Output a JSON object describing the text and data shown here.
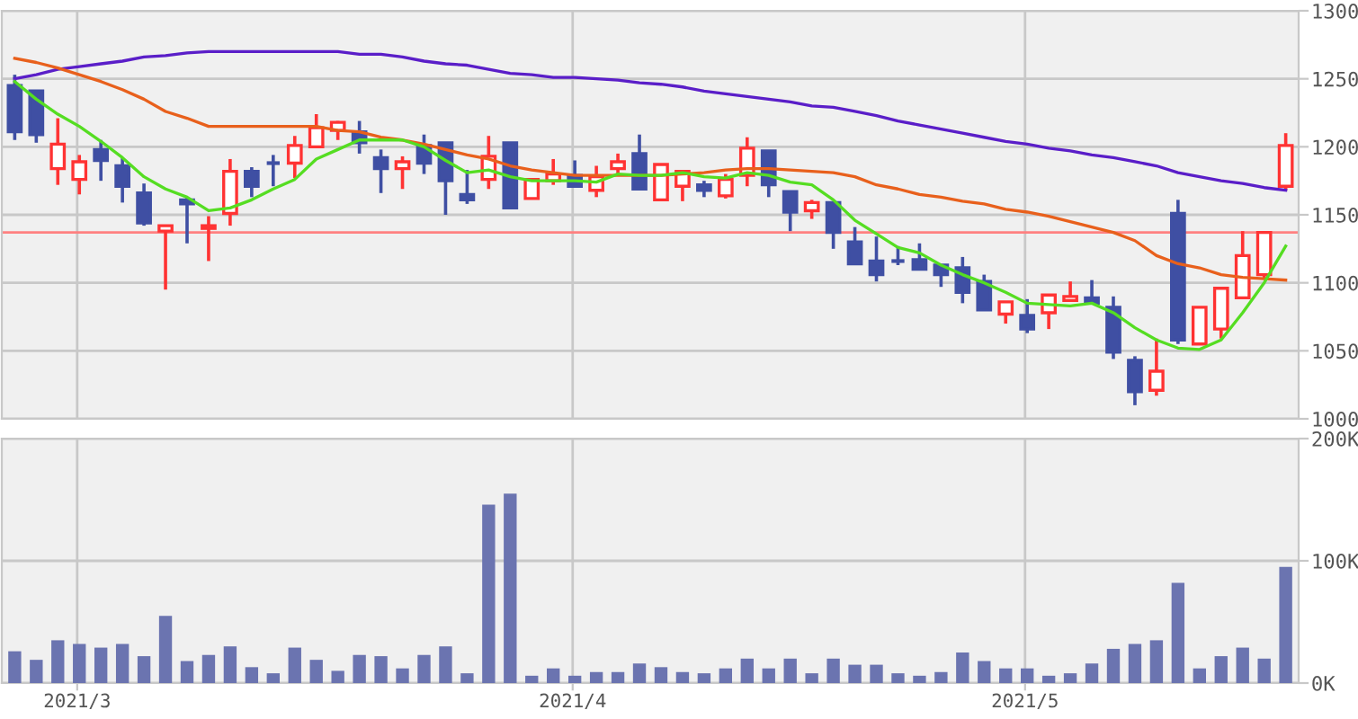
{
  "chart_data": [
    {
      "type": "candlestick",
      "categories": [
        null,
        null,
        null,
        "2021/3",
        null,
        null,
        null,
        null,
        null,
        null,
        null,
        null,
        null,
        null,
        null,
        null,
        null,
        null,
        null,
        null,
        null,
        null,
        null,
        null,
        null,
        null,
        "2021/4",
        null,
        null,
        null,
        null,
        null,
        null,
        null,
        null,
        null,
        null,
        null,
        null,
        null,
        null,
        null,
        null,
        null,
        null,
        null,
        null,
        "2021/5",
        null,
        null,
        null,
        null,
        null,
        null,
        null,
        null,
        null,
        null,
        null,
        null
      ],
      "ohlc": [
        [
          1245,
          1253,
          1205,
          1211
        ],
        [
          1241,
          1241,
          1203,
          1209
        ],
        [
          1184,
          1221,
          1172,
          1202
        ],
        [
          1176,
          1194,
          1165,
          1189
        ],
        [
          1198,
          1205,
          1175,
          1190
        ],
        [
          1186,
          1192,
          1159,
          1171
        ],
        [
          1166,
          1173,
          1142,
          1144
        ],
        [
          1138,
          1142,
          1095,
          1142
        ],
        [
          1161,
          1163,
          1129,
          1158
        ],
        [
          1140,
          1149,
          1116,
          1142
        ],
        [
          1151,
          1191,
          1142,
          1182
        ],
        [
          1182,
          1185,
          1163,
          1171
        ],
        [
          1188,
          1194,
          1171,
          1188
        ],
        [
          1188,
          1208,
          1177,
          1201
        ],
        [
          1200,
          1224,
          1200,
          1214
        ],
        [
          1212,
          1219,
          1205,
          1218
        ],
        [
          1211,
          1219,
          1195,
          1203
        ],
        [
          1192,
          1198,
          1166,
          1184
        ],
        [
          1184,
          1193,
          1169,
          1189
        ],
        [
          1201,
          1209,
          1180,
          1188
        ],
        [
          1203,
          1203,
          1150,
          1175
        ],
        [
          1165,
          1183,
          1158,
          1161
        ],
        [
          1176,
          1208,
          1169,
          1193
        ],
        [
          1203,
          1203,
          1155,
          1155
        ],
        [
          1162,
          1176,
          1162,
          1176
        ],
        [
          1175,
          1191,
          1172,
          1180
        ],
        [
          1179,
          1190,
          1171,
          1171
        ],
        [
          1168,
          1186,
          1163,
          1178
        ],
        [
          1184,
          1195,
          1180,
          1189
        ],
        [
          1195,
          1209,
          1169,
          1169
        ],
        [
          1161,
          1187,
          1161,
          1187
        ],
        [
          1171,
          1182,
          1160,
          1182
        ],
        [
          1172,
          1175,
          1163,
          1168
        ],
        [
          1164,
          1180,
          1162,
          1176
        ],
        [
          1179,
          1207,
          1171,
          1199
        ],
        [
          1197,
          1197,
          1163,
          1172
        ],
        [
          1167,
          1167,
          1138,
          1152
        ],
        [
          1153,
          1161,
          1147,
          1159
        ],
        [
          1159,
          1159,
          1125,
          1137
        ],
        [
          1130,
          1141,
          1114,
          1114
        ],
        [
          1116,
          1134,
          1101,
          1106
        ],
        [
          1116,
          1127,
          1113,
          1116
        ],
        [
          1117,
          1129,
          1110,
          1110
        ],
        [
          1113,
          1113,
          1097,
          1106
        ],
        [
          1111,
          1119,
          1085,
          1093
        ],
        [
          1101,
          1106,
          1080,
          1080
        ],
        [
          1077,
          1086,
          1070,
          1086
        ],
        [
          1076,
          1088,
          1063,
          1066
        ],
        [
          1078,
          1091,
          1066,
          1091
        ],
        [
          1087,
          1101,
          1086,
          1090
        ],
        [
          1089,
          1102,
          1085,
          1085
        ],
        [
          1082,
          1090,
          1044,
          1049
        ],
        [
          1043,
          1046,
          1010,
          1020
        ],
        [
          1021,
          1059,
          1017,
          1035
        ],
        [
          1151,
          1161,
          1055,
          1058
        ],
        [
          1055,
          1082,
          1055,
          1082
        ],
        [
          1066,
          1097,
          1059,
          1096
        ],
        [
          1089,
          1138,
          1089,
          1120
        ],
        [
          1106,
          1137,
          1103,
          1137
        ],
        [
          1171,
          1210,
          1168,
          1201
        ]
      ],
      "colors": [
        "#3f4fa3",
        "#3f4fa3",
        "#ff3333",
        "#ff3333",
        "#3f4fa3",
        "#3f4fa3",
        "#3f4fa3",
        "#ff3333",
        "#3f4fa3",
        "#ff3333",
        "#ff3333",
        "#3f4fa3",
        "#3f4fa3",
        "#ff3333",
        "#ff3333",
        "#ff3333",
        "#3f4fa3",
        "#3f4fa3",
        "#ff3333",
        "#3f4fa3",
        "#3f4fa3",
        "#3f4fa3",
        "#ff3333",
        "#3f4fa3",
        "#ff3333",
        "#ff3333",
        "#3f4fa3",
        "#ff3333",
        "#ff3333",
        "#3f4fa3",
        "#ff3333",
        "#ff3333",
        "#3f4fa3",
        "#ff3333",
        "#ff3333",
        "#3f4fa3",
        "#3f4fa3",
        "#ff3333",
        "#3f4fa3",
        "#3f4fa3",
        "#3f4fa3",
        "#3f4fa3",
        "#3f4fa3",
        "#3f4fa3",
        "#3f4fa3",
        "#3f4fa3",
        "#ff3333",
        "#3f4fa3",
        "#ff3333",
        "#ff3333",
        "#3f4fa3",
        "#3f4fa3",
        "#3f4fa3",
        "#ff3333",
        "#3f4fa3",
        "#ff3333",
        "#ff3333",
        "#ff3333",
        "#ff3333",
        "#ff3333"
      ],
      "series": [
        {
          "type": "line",
          "color": "#5a1ec8",
          "values": [
            1250,
            1253,
            1257,
            1259,
            1261,
            1263,
            1266,
            1267,
            1269,
            1270,
            1270,
            1270,
            1270,
            1270,
            1270,
            1270,
            1268,
            1268,
            1266,
            1263,
            1261,
            1260,
            1257,
            1254,
            1253,
            1251,
            1251,
            1250,
            1249,
            1247,
            1246,
            1244,
            1241,
            1239,
            1237,
            1235,
            1233,
            1230,
            1229,
            1226,
            1223,
            1219,
            1216,
            1213,
            1210,
            1207,
            1204,
            1202,
            1199,
            1197,
            1194,
            1192,
            1189,
            1186,
            1181,
            1178,
            1175,
            1173,
            1170,
            1168
          ]
        },
        {
          "type": "line",
          "color": "#e8601c",
          "values": [
            1265,
            1262,
            1258,
            1253,
            1248,
            1242,
            1235,
            1226,
            1221,
            1215,
            1215,
            1215,
            1215,
            1215,
            1215,
            1212,
            1211,
            1207,
            1205,
            1202,
            1198,
            1194,
            1191,
            1186,
            1183,
            1181,
            1179,
            1179,
            1179,
            1179,
            1179,
            1180,
            1181,
            1183,
            1184,
            1184,
            1183,
            1182,
            1181,
            1178,
            1172,
            1169,
            1165,
            1163,
            1160,
            1158,
            1154,
            1152,
            1149,
            1145,
            1141,
            1137,
            1131,
            1120,
            1114,
            1111,
            1106,
            1104,
            1103,
            1102
          ]
        },
        {
          "type": "line",
          "color": "#55dd22",
          "values": [
            1248,
            1235,
            1224,
            1215,
            1204,
            1192,
            1178,
            1169,
            1163,
            1153,
            1155,
            1161,
            1169,
            1176,
            1191,
            1198,
            1205,
            1205,
            1205,
            1200,
            1190,
            1181,
            1183,
            1178,
            1175,
            1175,
            1175,
            1174,
            1180,
            1179,
            1179,
            1181,
            1178,
            1177,
            1181,
            1179,
            1174,
            1172,
            1161,
            1146,
            1136,
            1126,
            1122,
            1113,
            1106,
            1100,
            1093,
            1085,
            1084,
            1083,
            1085,
            1078,
            1067,
            1058,
            1052,
            1051,
            1058,
            1078,
            1100,
            1127
          ]
        }
      ],
      "ylim": [
        1000,
        1300
      ],
      "yticks": [
        1000,
        1050,
        1100,
        1150,
        1200,
        1250,
        1300
      ],
      "ref_lines": [
        {
          "axis": "y",
          "value": 1137,
          "color": "#ff8080"
        }
      ],
      "grid": true,
      "tick_labels": "y"
    },
    {
      "type": "bar",
      "categories": [
        null,
        null,
        null,
        "2021/3",
        null,
        null,
        null,
        null,
        null,
        null,
        null,
        null,
        null,
        null,
        null,
        null,
        null,
        null,
        null,
        null,
        null,
        null,
        null,
        null,
        null,
        null,
        "2021/4",
        null,
        null,
        null,
        null,
        null,
        null,
        null,
        null,
        null,
        null,
        null,
        null,
        null,
        null,
        null,
        null,
        null,
        null,
        null,
        null,
        "2021/5",
        null,
        null,
        null,
        null,
        null,
        null,
        null,
        null,
        null,
        null,
        null,
        null
      ],
      "values": [
        26000,
        19000,
        35000,
        32000,
        29000,
        32000,
        22000,
        55000,
        18000,
        23000,
        30000,
        13000,
        8000,
        29000,
        19000,
        10000,
        23000,
        22000,
        12000,
        23000,
        30000,
        8000,
        146000,
        155000,
        6000,
        12000,
        6000,
        9000,
        9000,
        16000,
        13000,
        9000,
        8000,
        12000,
        20000,
        12000,
        20000,
        8000,
        20000,
        15000,
        15000,
        8000,
        6000,
        9000,
        25000,
        18000,
        12000,
        12000,
        6000,
        8000,
        16000,
        28000,
        32000,
        35000,
        82000,
        12000,
        22000,
        29000,
        20000,
        95000
      ],
      "color": "#6b74b0",
      "ylim": [
        0,
        200000
      ],
      "yticks": [
        {
          "value": 0,
          "label": "0K"
        },
        {
          "value": 100000,
          "label": "100K"
        },
        {
          "value": 200000,
          "label": "200K"
        }
      ],
      "grid": true
    }
  ]
}
